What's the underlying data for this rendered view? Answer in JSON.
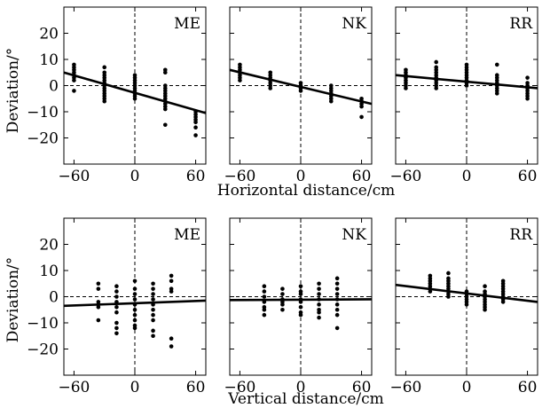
{
  "figure": {
    "rows": [
      {
        "xlabel": "Horizontal distance/cm",
        "ylabel": "Deviation/°"
      },
      {
        "xlabel": "Vertical distance/cm",
        "ylabel": "Deviation/°"
      }
    ],
    "x_ticks": [
      "−60",
      "0",
      "60"
    ],
    "y_ticks": [
      "20",
      "10",
      "0",
      "−10",
      "−20"
    ]
  },
  "chart_data": [
    {
      "type": "scatter",
      "panel": "ME",
      "xlabel": "Horizontal distance/cm",
      "ylabel": "Deviation/°",
      "xlim": [
        -70,
        70
      ],
      "ylim": [
        -30,
        30
      ],
      "xticks": [
        -60,
        0,
        60
      ],
      "yticks": [
        -20,
        -10,
        0,
        10,
        20
      ],
      "reference_lines": {
        "x": 0,
        "y": 0
      },
      "points": [
        [
          -60,
          8
        ],
        [
          -60,
          7
        ],
        [
          -60,
          6
        ],
        [
          -60,
          5
        ],
        [
          -60,
          4
        ],
        [
          -60,
          3
        ],
        [
          -60,
          2
        ],
        [
          -60,
          -2
        ],
        [
          -30,
          7
        ],
        [
          -30,
          5
        ],
        [
          -30,
          4
        ],
        [
          -30,
          3
        ],
        [
          -30,
          2
        ],
        [
          -30,
          1
        ],
        [
          -30,
          0
        ],
        [
          -30,
          -1
        ],
        [
          -30,
          -2
        ],
        [
          -30,
          -3
        ],
        [
          -30,
          -4
        ],
        [
          -30,
          -5
        ],
        [
          -30,
          -6
        ],
        [
          0,
          4
        ],
        [
          0,
          3
        ],
        [
          0,
          2
        ],
        [
          0,
          1
        ],
        [
          0,
          0
        ],
        [
          0,
          -1
        ],
        [
          0,
          -2
        ],
        [
          0,
          -3
        ],
        [
          0,
          -4
        ],
        [
          0,
          -5
        ],
        [
          30,
          6
        ],
        [
          30,
          5
        ],
        [
          30,
          0
        ],
        [
          30,
          -1
        ],
        [
          30,
          -2
        ],
        [
          30,
          -3
        ],
        [
          30,
          -4
        ],
        [
          30,
          -5
        ],
        [
          30,
          -6
        ],
        [
          30,
          -7
        ],
        [
          30,
          -8
        ],
        [
          30,
          -9
        ],
        [
          30,
          -15
        ],
        [
          60,
          -10
        ],
        [
          60,
          -11
        ],
        [
          60,
          -12
        ],
        [
          60,
          -13
        ],
        [
          60,
          -14
        ],
        [
          60,
          -16
        ],
        [
          60,
          -19
        ]
      ],
      "fit": {
        "x": [
          -70,
          70
        ],
        "y": [
          5,
          -10.5
        ]
      }
    },
    {
      "type": "scatter",
      "panel": "NK",
      "xlabel": "Horizontal distance/cm",
      "ylabel": "Deviation/°",
      "xlim": [
        -70,
        70
      ],
      "ylim": [
        -30,
        30
      ],
      "xticks": [
        -60,
        0,
        60
      ],
      "yticks": [
        -20,
        -10,
        0,
        10,
        20
      ],
      "reference_lines": {
        "x": 0,
        "y": 0
      },
      "points": [
        [
          -60,
          8
        ],
        [
          -60,
          7
        ],
        [
          -60,
          6
        ],
        [
          -60,
          5
        ],
        [
          -60,
          4
        ],
        [
          -60,
          3
        ],
        [
          -60,
          2
        ],
        [
          -30,
          5
        ],
        [
          -30,
          4
        ],
        [
          -30,
          3
        ],
        [
          -30,
          2
        ],
        [
          -30,
          1
        ],
        [
          -30,
          0
        ],
        [
          -30,
          -1
        ],
        [
          0,
          1
        ],
        [
          0,
          0
        ],
        [
          0,
          -1
        ],
        [
          0,
          -2
        ],
        [
          30,
          0
        ],
        [
          30,
          -1
        ],
        [
          30,
          -2
        ],
        [
          30,
          -3
        ],
        [
          30,
          -4
        ],
        [
          30,
          -5
        ],
        [
          30,
          -6
        ],
        [
          60,
          -5
        ],
        [
          60,
          -6
        ],
        [
          60,
          -7
        ],
        [
          60,
          -8
        ],
        [
          60,
          -12
        ]
      ],
      "fit": {
        "x": [
          -70,
          70
        ],
        "y": [
          6,
          -7
        ]
      }
    },
    {
      "type": "scatter",
      "panel": "RR",
      "xlabel": "Horizontal distance/cm",
      "ylabel": "Deviation/°",
      "xlim": [
        -70,
        70
      ],
      "ylim": [
        -30,
        30
      ],
      "xticks": [
        -60,
        0,
        60
      ],
      "yticks": [
        -20,
        -10,
        0,
        10,
        20
      ],
      "reference_lines": {
        "x": 0,
        "y": 0
      },
      "points": [
        [
          -60,
          6
        ],
        [
          -60,
          5
        ],
        [
          -60,
          4
        ],
        [
          -60,
          3
        ],
        [
          -60,
          2
        ],
        [
          -60,
          1
        ],
        [
          -60,
          0
        ],
        [
          -60,
          -1
        ],
        [
          -30,
          9
        ],
        [
          -30,
          7
        ],
        [
          -30,
          6
        ],
        [
          -30,
          5
        ],
        [
          -30,
          4
        ],
        [
          -30,
          3
        ],
        [
          -30,
          2
        ],
        [
          -30,
          1
        ],
        [
          -30,
          0
        ],
        [
          -30,
          -1
        ],
        [
          0,
          8
        ],
        [
          0,
          7
        ],
        [
          0,
          6
        ],
        [
          0,
          5
        ],
        [
          0,
          4
        ],
        [
          0,
          3
        ],
        [
          0,
          2
        ],
        [
          0,
          1
        ],
        [
          0,
          0
        ],
        [
          30,
          8
        ],
        [
          30,
          4
        ],
        [
          30,
          3
        ],
        [
          30,
          2
        ],
        [
          30,
          1
        ],
        [
          30,
          0
        ],
        [
          30,
          -1
        ],
        [
          30,
          -2
        ],
        [
          30,
          -3
        ],
        [
          60,
          3
        ],
        [
          60,
          1
        ],
        [
          60,
          0
        ],
        [
          60,
          -1
        ],
        [
          60,
          -2
        ],
        [
          60,
          -3
        ],
        [
          60,
          -4
        ],
        [
          60,
          -5
        ]
      ],
      "fit": {
        "x": [
          -70,
          70
        ],
        "y": [
          4,
          -1
        ]
      }
    },
    {
      "type": "scatter",
      "panel": "ME",
      "xlabel": "Vertical distance/cm",
      "ylabel": "Deviation/°",
      "xlim": [
        -70,
        70
      ],
      "ylim": [
        -30,
        30
      ],
      "xticks": [
        -60,
        0,
        60
      ],
      "yticks": [
        -20,
        -10,
        0,
        10,
        20
      ],
      "reference_lines": {
        "x": 0,
        "y": 0
      },
      "points": [
        [
          -36,
          5
        ],
        [
          -36,
          3
        ],
        [
          -36,
          -2
        ],
        [
          -36,
          -3
        ],
        [
          -36,
          -4
        ],
        [
          -36,
          -9
        ],
        [
          -18,
          4
        ],
        [
          -18,
          2
        ],
        [
          -18,
          0
        ],
        [
          -18,
          -2
        ],
        [
          -18,
          -4
        ],
        [
          -18,
          -6
        ],
        [
          -18,
          -10
        ],
        [
          -18,
          -12
        ],
        [
          -18,
          -14
        ],
        [
          0,
          6
        ],
        [
          0,
          3
        ],
        [
          0,
          1
        ],
        [
          0,
          -1
        ],
        [
          0,
          -3
        ],
        [
          0,
          -5
        ],
        [
          0,
          -7
        ],
        [
          0,
          -9
        ],
        [
          0,
          -11
        ],
        [
          0,
          -12
        ],
        [
          18,
          5
        ],
        [
          18,
          3
        ],
        [
          18,
          1
        ],
        [
          18,
          -1
        ],
        [
          18,
          -3
        ],
        [
          18,
          -5
        ],
        [
          18,
          -7
        ],
        [
          18,
          -9
        ],
        [
          18,
          -13
        ],
        [
          18,
          -15
        ],
        [
          36,
          8
        ],
        [
          36,
          6
        ],
        [
          36,
          3
        ],
        [
          36,
          2
        ],
        [
          36,
          -16
        ],
        [
          36,
          -19
        ]
      ],
      "fit": {
        "x": [
          -70,
          70
        ],
        "y": [
          -3.5,
          -1.5
        ]
      }
    },
    {
      "type": "scatter",
      "panel": "NK",
      "xlabel": "Vertical distance/cm",
      "ylabel": "Deviation/°",
      "xlim": [
        -70,
        70
      ],
      "ylim": [
        -30,
        30
      ],
      "xticks": [
        -60,
        0,
        60
      ],
      "yticks": [
        -20,
        -10,
        0,
        10,
        20
      ],
      "reference_lines": {
        "x": 0,
        "y": 0
      },
      "points": [
        [
          -36,
          4
        ],
        [
          -36,
          2
        ],
        [
          -36,
          0
        ],
        [
          -36,
          -2
        ],
        [
          -36,
          -4
        ],
        [
          -36,
          -5
        ],
        [
          -36,
          -7
        ],
        [
          -18,
          3
        ],
        [
          -18,
          1
        ],
        [
          -18,
          -1
        ],
        [
          -18,
          -2
        ],
        [
          -18,
          -3
        ],
        [
          -18,
          -5
        ],
        [
          0,
          4
        ],
        [
          0,
          2
        ],
        [
          0,
          1
        ],
        [
          0,
          -1
        ],
        [
          0,
          -2
        ],
        [
          0,
          -4
        ],
        [
          0,
          -6
        ],
        [
          0,
          -7
        ],
        [
          18,
          5
        ],
        [
          18,
          3
        ],
        [
          18,
          1
        ],
        [
          18,
          -1
        ],
        [
          18,
          -3
        ],
        [
          18,
          -5
        ],
        [
          18,
          -6
        ],
        [
          18,
          -8
        ],
        [
          36,
          7
        ],
        [
          36,
          5
        ],
        [
          36,
          3
        ],
        [
          36,
          1
        ],
        [
          36,
          -1
        ],
        [
          36,
          -3
        ],
        [
          36,
          -5
        ],
        [
          36,
          -7
        ],
        [
          36,
          -12
        ]
      ],
      "fit": {
        "x": [
          -70,
          70
        ],
        "y": [
          -1.3,
          -1.0
        ]
      }
    },
    {
      "type": "scatter",
      "panel": "RR",
      "xlabel": "Vertical distance/cm",
      "ylabel": "Deviation/°",
      "xlim": [
        -70,
        70
      ],
      "ylim": [
        -30,
        30
      ],
      "xticks": [
        -60,
        0,
        60
      ],
      "yticks": [
        -20,
        -10,
        0,
        10,
        20
      ],
      "reference_lines": {
        "x": 0,
        "y": 0
      },
      "points": [
        [
          -36,
          8
        ],
        [
          -36,
          7
        ],
        [
          -36,
          6
        ],
        [
          -36,
          5
        ],
        [
          -36,
          4
        ],
        [
          -36,
          3
        ],
        [
          -36,
          2
        ],
        [
          -18,
          9
        ],
        [
          -18,
          7
        ],
        [
          -18,
          6
        ],
        [
          -18,
          5
        ],
        [
          -18,
          4
        ],
        [
          -18,
          3
        ],
        [
          -18,
          2
        ],
        [
          -18,
          1
        ],
        [
          -18,
          0
        ],
        [
          0,
          2
        ],
        [
          0,
          1
        ],
        [
          0,
          0
        ],
        [
          0,
          -1
        ],
        [
          0,
          -2
        ],
        [
          0,
          -3
        ],
        [
          18,
          4
        ],
        [
          18,
          2
        ],
        [
          18,
          1
        ],
        [
          18,
          0
        ],
        [
          18,
          -1
        ],
        [
          18,
          -2
        ],
        [
          18,
          -3
        ],
        [
          18,
          -4
        ],
        [
          18,
          -5
        ],
        [
          36,
          6
        ],
        [
          36,
          5
        ],
        [
          36,
          4
        ],
        [
          36,
          3
        ],
        [
          36,
          2
        ],
        [
          36,
          1
        ],
        [
          36,
          0
        ],
        [
          36,
          -1
        ],
        [
          36,
          -2
        ]
      ],
      "fit": {
        "x": [
          -70,
          70
        ],
        "y": [
          4.5,
          -2
        ]
      }
    }
  ]
}
